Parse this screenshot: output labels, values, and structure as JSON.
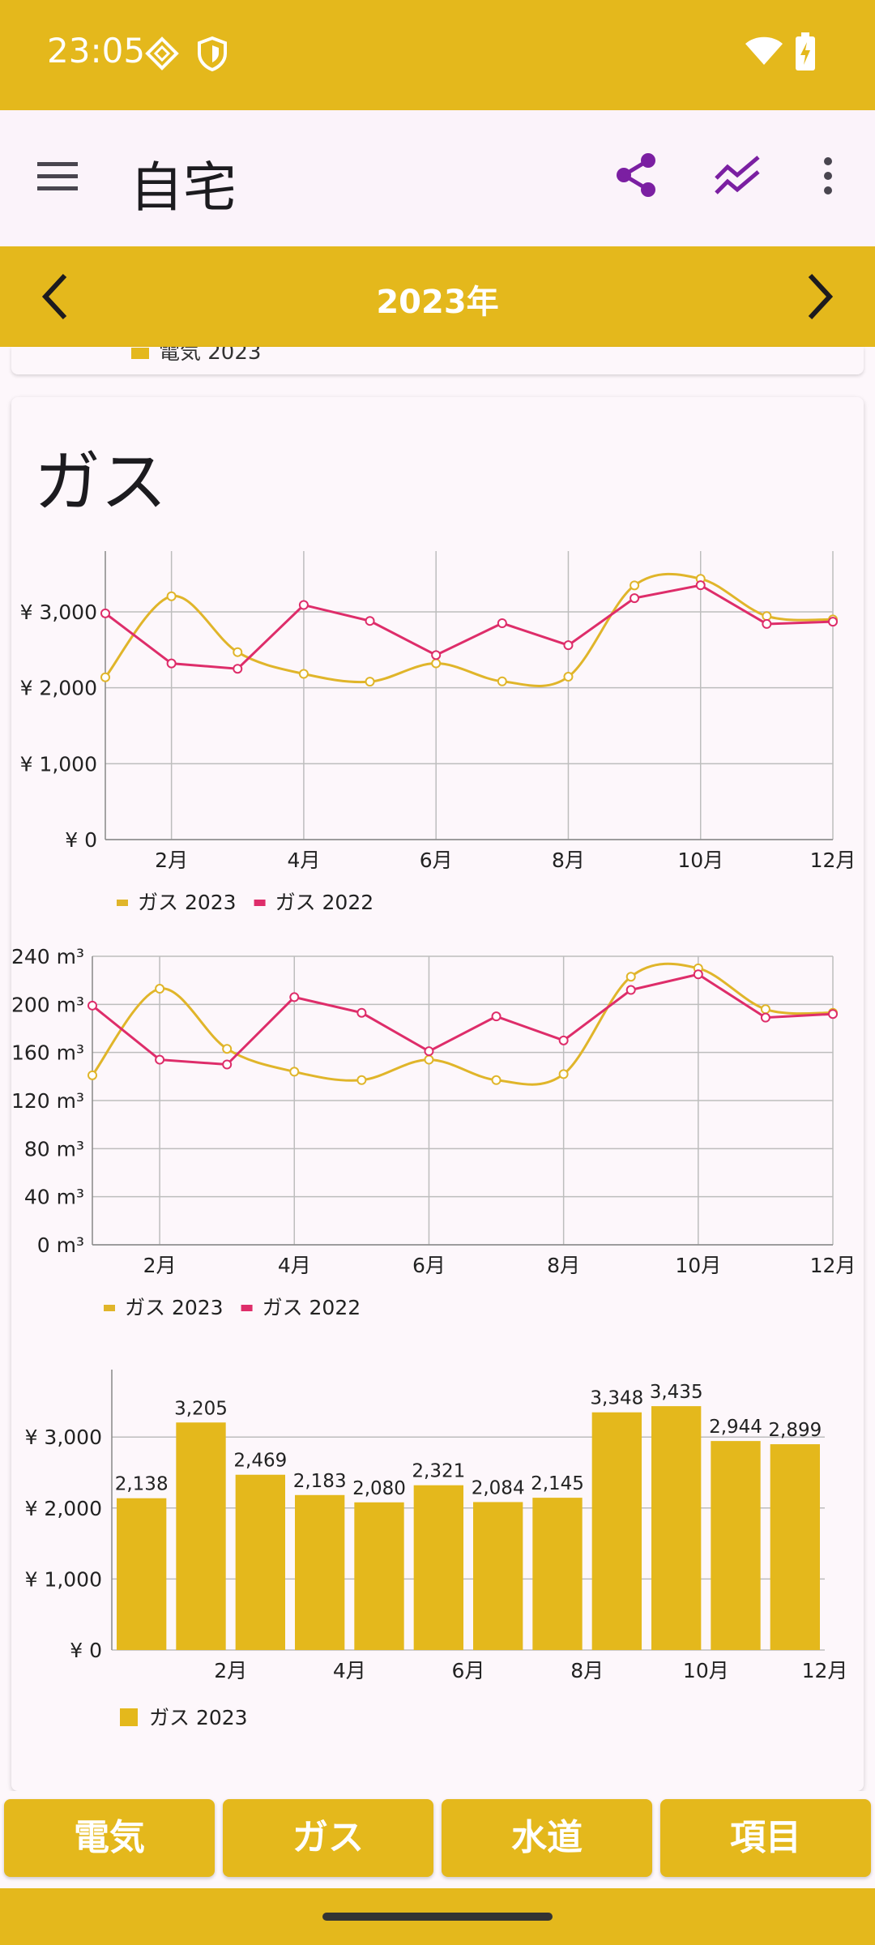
{
  "status_bar": {
    "time": "23:05"
  },
  "app_bar": {
    "title": "自宅"
  },
  "year_bar": {
    "year": "2023年"
  },
  "previous_card": {
    "legend_label": "電気 2023"
  },
  "card": {
    "title": "ガス"
  },
  "colors": {
    "accent": "#e4b81c",
    "series_2023": "#e0b52a",
    "series_2022": "#de2d6a",
    "icon_purple": "#7b1fa2"
  },
  "chart_data": [
    {
      "type": "line",
      "categories": [
        "1月",
        "2月",
        "3月",
        "4月",
        "5月",
        "6月",
        "7月",
        "8月",
        "9月",
        "10月",
        "11月",
        "12月"
      ],
      "x_tick_labels": [
        "2月",
        "4月",
        "6月",
        "8月",
        "10月",
        "12月"
      ],
      "y_tick_labels": [
        "¥ 0",
        "¥ 1,000",
        "¥ 2,000",
        "¥ 3,000"
      ],
      "ylim": [
        0,
        3800
      ],
      "series": [
        {
          "name": "ガス 2023",
          "values": [
            2138,
            3205,
            2469,
            2183,
            2080,
            2321,
            2084,
            2145,
            3348,
            3435,
            2944,
            2899
          ]
        },
        {
          "name": "ガス 2022",
          "values": [
            2980,
            2320,
            2250,
            3090,
            2880,
            2430,
            2850,
            2560,
            3180,
            3350,
            2840,
            2870
          ]
        }
      ]
    },
    {
      "type": "line",
      "categories": [
        "1月",
        "2月",
        "3月",
        "4月",
        "5月",
        "6月",
        "7月",
        "8月",
        "9月",
        "10月",
        "11月",
        "12月"
      ],
      "x_tick_labels": [
        "2月",
        "4月",
        "6月",
        "8月",
        "10月",
        "12月"
      ],
      "y_tick_labels": [
        "0 m³",
        "40 m³",
        "80 m³",
        "120 m³",
        "160 m³",
        "200 m³",
        "240 m³"
      ],
      "ylim": [
        0,
        240
      ],
      "series": [
        {
          "name": "ガス 2023",
          "values": [
            141,
            213,
            163,
            144,
            137,
            154,
            137,
            142,
            223,
            230,
            196,
            193
          ]
        },
        {
          "name": "ガス 2022",
          "values": [
            199,
            154,
            150,
            206,
            193,
            161,
            190,
            170,
            212,
            225,
            189,
            192
          ]
        }
      ]
    },
    {
      "type": "bar",
      "categories": [
        "1月",
        "2月",
        "3月",
        "4月",
        "5月",
        "6月",
        "7月",
        "8月",
        "9月",
        "10月",
        "11月",
        "12月"
      ],
      "x_tick_labels": [
        "2月",
        "4月",
        "6月",
        "8月",
        "10月",
        "12月"
      ],
      "y_tick_labels": [
        "¥ 0",
        "¥ 1,000",
        "¥ 2,000",
        "¥ 3,000"
      ],
      "ylim": [
        0,
        3950
      ],
      "series": [
        {
          "name": "ガス 2023",
          "values": [
            2138,
            3205,
            2469,
            2183,
            2080,
            2321,
            2084,
            2145,
            3348,
            3435,
            2944,
            2899
          ],
          "data_labels": [
            "2,138",
            "3,205",
            "2,469",
            "2,183",
            "2,080",
            "2,321",
            "2,084",
            "2,145",
            "3,348",
            "3,435",
            "2,944",
            "2,899"
          ]
        }
      ]
    }
  ],
  "bottom_tabs": [
    {
      "label": "電気"
    },
    {
      "label": "ガス"
    },
    {
      "label": "水道"
    },
    {
      "label": "項目"
    }
  ]
}
